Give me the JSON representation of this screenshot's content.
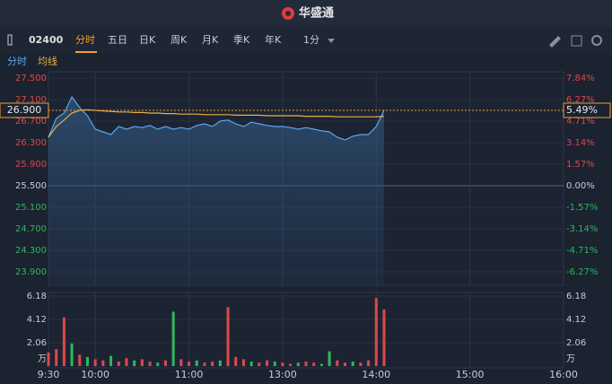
{
  "app": {
    "title": "华盛通"
  },
  "toolbar": {
    "symbol": "02400",
    "tabs": [
      "分时",
      "五日",
      "日K",
      "周K",
      "月K",
      "季K",
      "年K"
    ],
    "interval": "1分"
  },
  "chart_data": [
    {
      "type": "line",
      "x": [
        0,
        5,
        10,
        15,
        20,
        25,
        30,
        35,
        40,
        45,
        50,
        55,
        60,
        65,
        70,
        75,
        80,
        85,
        90,
        95,
        100,
        105,
        110,
        115,
        120,
        125,
        130,
        135,
        140,
        145,
        150,
        155,
        160,
        165,
        170,
        175,
        180,
        185,
        190,
        195,
        200,
        205,
        210,
        215
      ],
      "xlim": [
        0,
        330
      ],
      "xticks": [
        {
          "value": 0,
          "label": "9:30"
        },
        {
          "value": 30,
          "label": "10:00"
        },
        {
          "value": 90,
          "label": "11:00"
        },
        {
          "value": 150,
          "label": "13:00"
        },
        {
          "value": 210,
          "label": "14:00"
        },
        {
          "value": 270,
          "label": "15:00"
        },
        {
          "value": 330,
          "label": "16:00"
        }
      ],
      "ylim": [
        23.9,
        27.5
      ],
      "yticks": [
        {
          "value": 27.5,
          "label": "27.500"
        },
        {
          "value": 27.1,
          "label": "27.100"
        },
        {
          "value": 26.7,
          "label": "26.700"
        },
        {
          "value": 26.3,
          "label": "26.300"
        },
        {
          "value": 25.9,
          "label": "25.900"
        },
        {
          "value": 25.5,
          "label": "25.500"
        },
        {
          "value": 25.1,
          "label": "25.100"
        },
        {
          "value": 24.7,
          "label": "24.700"
        },
        {
          "value": 24.3,
          "label": "24.300"
        },
        {
          "value": 23.9,
          "label": "23.900"
        }
      ],
      "y2lim": [
        -6.27,
        7.84
      ],
      "y2ticks": [
        {
          "value": 7.84,
          "label": "7.84%"
        },
        {
          "value": 6.27,
          "label": "6.27%"
        },
        {
          "value": 4.71,
          "label": "4.71%"
        },
        {
          "value": 3.14,
          "label": "3.14%"
        },
        {
          "value": 1.57,
          "label": "1.57%"
        },
        {
          "value": 0,
          "label": "0.00%"
        },
        {
          "value": -1.57,
          "label": "-1.57%"
        },
        {
          "value": -3.14,
          "label": "-3.14%"
        },
        {
          "value": -4.71,
          "label": "-4.71%"
        },
        {
          "value": -6.27,
          "label": "-6.27%"
        }
      ],
      "grid": true,
      "series": [
        {
          "name": "分时",
          "color": "#5aa6ec",
          "values": [
            26.4,
            26.75,
            26.85,
            27.15,
            26.95,
            26.8,
            26.55,
            26.5,
            26.45,
            26.6,
            26.55,
            26.6,
            26.58,
            26.62,
            26.55,
            26.6,
            26.55,
            26.58,
            26.55,
            26.62,
            26.65,
            26.6,
            26.7,
            26.72,
            26.65,
            26.6,
            26.68,
            26.65,
            26.62,
            26.6,
            26.6,
            26.58,
            26.55,
            26.58,
            26.55,
            26.52,
            26.5,
            26.4,
            26.35,
            26.42,
            26.45,
            26.45,
            26.6,
            26.9
          ]
        },
        {
          "name": "均线",
          "color": "#e8b04a",
          "values": [
            26.4,
            26.6,
            26.72,
            26.85,
            26.9,
            26.91,
            26.9,
            26.89,
            26.88,
            26.87,
            26.87,
            26.86,
            26.86,
            26.85,
            26.85,
            26.84,
            26.84,
            26.83,
            26.83,
            26.83,
            26.82,
            26.82,
            26.82,
            26.82,
            26.81,
            26.81,
            26.81,
            26.81,
            26.8,
            26.8,
            26.8,
            26.8,
            26.8,
            26.79,
            26.79,
            26.79,
            26.79,
            26.78,
            26.78,
            26.78,
            26.78,
            26.78,
            26.78,
            26.79
          ]
        }
      ],
      "current_price": {
        "value": 26.9,
        "label": "26.900"
      },
      "current_change": {
        "value": 5.49,
        "label": "5.49%"
      }
    },
    {
      "type": "bar",
      "unit": "万",
      "values": [
        1.2,
        1.5,
        4.3,
        2.0,
        1.0,
        0.8,
        0.6,
        0.5,
        0.9,
        0.4,
        0.7,
        0.5,
        0.6,
        0.4,
        0.3,
        0.5,
        4.8,
        0.6,
        0.4,
        0.5,
        0.3,
        0.4,
        0.5,
        5.2,
        0.8,
        0.6,
        0.4,
        0.3,
        0.5,
        0.4,
        0.3,
        0.2,
        0.3,
        0.4,
        0.3,
        0.2,
        1.3,
        0.5,
        0.3,
        0.4,
        0.3,
        0.5,
        6.0,
        5.0
      ],
      "colors": [
        "#e04848",
        "#e04848",
        "#e04848",
        "#2eb85c",
        "#e04848",
        "#2eb85c",
        "#e04848",
        "#e04848",
        "#2eb85c",
        "#e04848",
        "#e04848",
        "#2eb85c",
        "#e04848",
        "#e04848",
        "#2eb85c",
        "#e04848",
        "#2eb85c",
        "#e04848",
        "#e04848",
        "#2eb85c",
        "#e04848",
        "#e04848",
        "#2eb85c",
        "#e04848",
        "#e04848",
        "#e04848",
        "#2eb85c",
        "#e04848",
        "#e04848",
        "#2eb85c",
        "#e04848",
        "#e04848",
        "#2eb85c",
        "#e04848",
        "#e04848",
        "#2eb85c",
        "#2eb85c",
        "#e04848",
        "#e04848",
        "#2eb85c",
        "#e04848",
        "#e04848",
        "#e04848",
        "#e04848"
      ],
      "ylim": [
        0,
        6.18
      ],
      "yticks": [
        2.06,
        4.12,
        6.18
      ]
    }
  ]
}
